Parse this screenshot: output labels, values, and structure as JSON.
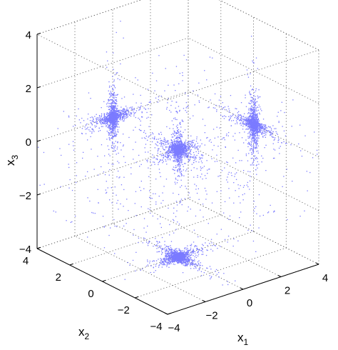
{
  "chart_data": {
    "type": "scatter",
    "projection": "3d",
    "title": "",
    "xlabel": "x",
    "xlabel_sub": "1",
    "ylabel": "x",
    "ylabel_sub": "2",
    "zlabel": "x",
    "zlabel_sub": "3",
    "xlim": [
      -4,
      4
    ],
    "ylim": [
      -4,
      4
    ],
    "zlim": [
      -4,
      4
    ],
    "x_ticks": [
      -4,
      -2,
      0,
      2,
      4
    ],
    "y_ticks": [
      -4,
      -2,
      0,
      2,
      4
    ],
    "z_ticks": [
      -4,
      -2,
      0,
      2,
      4
    ],
    "x_tick_labels": [
      "−4",
      "−2",
      "0",
      "2",
      "4"
    ],
    "y_tick_labels": [
      "−4",
      "−2",
      "0",
      "2",
      "4"
    ],
    "z_tick_labels": [
      "−4",
      "−2",
      "0",
      "2",
      "4"
    ],
    "grid": true,
    "box": true,
    "legend": "none",
    "marker_color": "#7b7bff",
    "series": [
      {
        "clusters": [
          {
            "center": [
              0,
              0,
              0
            ],
            "arm_directions": [
              [
                1,
                0,
                0
              ],
              [
                0,
                1,
                0
              ],
              [
                0,
                0,
                1
              ]
            ]
          },
          {
            "center": [
              0,
              0,
              -4
            ],
            "arm_directions": [
              [
                1,
                0,
                0
              ],
              [
                0,
                1,
                0
              ]
            ]
          },
          {
            "center": [
              0,
              4,
              0
            ],
            "arm_directions": [
              [
                1,
                0,
                0
              ],
              [
                0,
                0,
                1
              ]
            ]
          },
          {
            "center": [
              4,
              0,
              0
            ],
            "arm_directions": [
              [
                0,
                1,
                0
              ],
              [
                0,
                0,
                1
              ]
            ]
          }
        ],
        "distribution": "heavy-tailed, concentrated along arms"
      }
    ]
  }
}
